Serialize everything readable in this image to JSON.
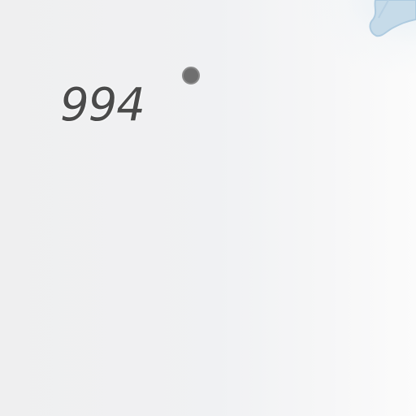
{
  "map": {
    "land_color": "#efeff0",
    "water_color": "#c9dcea",
    "poi": {
      "icon": "peak-dot-icon",
      "color": "#6f6f6f",
      "label": "994"
    }
  }
}
